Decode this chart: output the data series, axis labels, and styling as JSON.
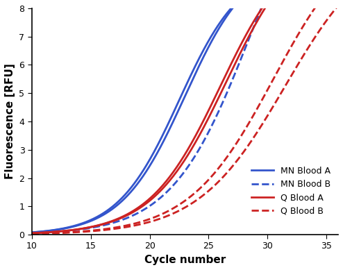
{
  "title": "",
  "xlabel": "Cycle number",
  "ylabel": "Fluorescence [RFU]",
  "xlim": [
    10,
    36
  ],
  "ylim": [
    0,
    8
  ],
  "yticks": [
    0,
    1,
    2,
    3,
    4,
    5,
    6,
    7,
    8
  ],
  "xticks": [
    10,
    15,
    20,
    25,
    30,
    35
  ],
  "series": [
    {
      "label": "MN Blood A (1)",
      "color": "#3355cc",
      "linestyle": "solid",
      "linewidth": 2.0,
      "L": 9.5,
      "k": 0.38,
      "x0": 22.5
    },
    {
      "label": "MN Blood A (2)",
      "color": "#3355cc",
      "linestyle": "solid",
      "linewidth": 2.0,
      "L": 9.8,
      "k": 0.37,
      "x0": 23.0
    },
    {
      "label": "MN Blood B",
      "color": "#3355cc",
      "linestyle": "dashed",
      "linewidth": 2.0,
      "L": 14.0,
      "k": 0.3,
      "x0": 28.5
    },
    {
      "label": "Q Blood A (1)",
      "color": "#cc2222",
      "linestyle": "solid",
      "linewidth": 2.0,
      "L": 10.5,
      "k": 0.33,
      "x0": 26.0
    },
    {
      "label": "Q Blood A (2)",
      "color": "#cc2222",
      "linestyle": "solid",
      "linewidth": 2.0,
      "L": 10.8,
      "k": 0.32,
      "x0": 26.5
    },
    {
      "label": "Q Blood B (1)",
      "color": "#cc2222",
      "linestyle": "dashed",
      "linewidth": 2.0,
      "L": 11.0,
      "k": 0.28,
      "x0": 30.5
    },
    {
      "label": "Q Blood B (2)",
      "color": "#cc2222",
      "linestyle": "dashed",
      "linewidth": 2.0,
      "L": 10.5,
      "k": 0.27,
      "x0": 31.5
    }
  ],
  "legend_entries": [
    {
      "label": "MN Blood A",
      "color": "#3355cc",
      "linestyle": "solid"
    },
    {
      "label": "MN Blood B",
      "color": "#3355cc",
      "linestyle": "dashed"
    },
    {
      "label": "Q Blood A",
      "color": "#cc2222",
      "linestyle": "solid"
    },
    {
      "label": "Q Blood B",
      "color": "#cc2222",
      "linestyle": "dashed"
    }
  ],
  "background_color": "#ffffff",
  "legend_fontsize": 9,
  "axis_fontsize": 11,
  "tick_fontsize": 9
}
